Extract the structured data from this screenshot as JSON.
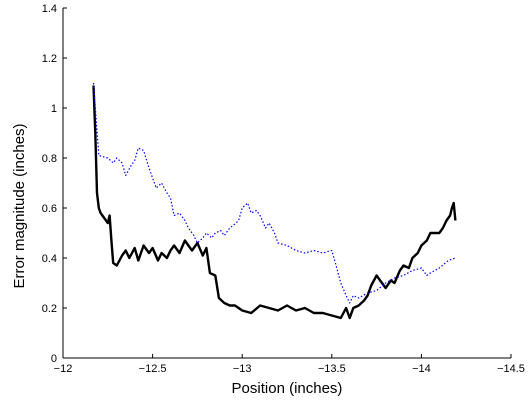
{
  "chart_data": {
    "type": "line",
    "title": "",
    "xlabel": "Position (inches)",
    "ylabel": "Error magnitude (inches)",
    "xlim": [
      -12,
      -14.5
    ],
    "ylim": [
      0,
      1.4
    ],
    "x_reversed": true,
    "grid": false,
    "legend": "none",
    "x_ticks": [
      -12,
      -12.5,
      -13,
      -13.5,
      -14,
      -14.5
    ],
    "x_tick_labels": [
      "−12",
      "−12.5",
      "−13",
      "−13.5",
      "−14",
      "−14.5"
    ],
    "y_ticks": [
      0,
      0.2,
      0.4,
      0.6,
      0.8,
      1,
      1.2,
      1.4
    ],
    "y_tick_labels": [
      "0",
      "0.2",
      "0.4",
      "0.6",
      "0.8",
      "1",
      "1.2",
      "1.4"
    ],
    "series": [
      {
        "style": "solid",
        "color": "#000000",
        "x": [
          -12.17,
          -12.18,
          -12.19,
          -12.2,
          -12.21,
          -12.23,
          -12.25,
          -12.26,
          -12.27,
          -12.28,
          -12.3,
          -12.33,
          -12.35,
          -12.37,
          -12.4,
          -12.42,
          -12.45,
          -12.48,
          -12.5,
          -12.53,
          -12.55,
          -12.58,
          -12.6,
          -12.62,
          -12.65,
          -12.68,
          -12.7,
          -12.72,
          -12.75,
          -12.78,
          -12.8,
          -12.82,
          -12.85,
          -12.87,
          -12.9,
          -12.93,
          -12.96,
          -13.0,
          -13.05,
          -13.1,
          -13.15,
          -13.2,
          -13.25,
          -13.3,
          -13.35,
          -13.4,
          -13.45,
          -13.5,
          -13.55,
          -13.58,
          -13.6,
          -13.62,
          -13.65,
          -13.68,
          -13.7,
          -13.72,
          -13.75,
          -13.78,
          -13.8,
          -13.83,
          -13.85,
          -13.88,
          -13.9,
          -13.93,
          -13.95,
          -13.98,
          -14.0,
          -14.03,
          -14.05,
          -14.08,
          -14.1,
          -14.12,
          -14.14,
          -14.16,
          -14.17,
          -14.18,
          -14.19
        ],
        "values": [
          1.09,
          0.9,
          0.66,
          0.6,
          0.58,
          0.56,
          0.54,
          0.57,
          0.47,
          0.38,
          0.37,
          0.41,
          0.43,
          0.4,
          0.44,
          0.39,
          0.45,
          0.42,
          0.44,
          0.39,
          0.42,
          0.4,
          0.43,
          0.45,
          0.42,
          0.47,
          0.45,
          0.43,
          0.46,
          0.41,
          0.44,
          0.34,
          0.33,
          0.24,
          0.22,
          0.21,
          0.21,
          0.19,
          0.18,
          0.21,
          0.2,
          0.19,
          0.21,
          0.19,
          0.2,
          0.18,
          0.18,
          0.17,
          0.16,
          0.2,
          0.16,
          0.2,
          0.21,
          0.23,
          0.25,
          0.29,
          0.33,
          0.3,
          0.28,
          0.31,
          0.3,
          0.35,
          0.37,
          0.36,
          0.4,
          0.42,
          0.45,
          0.47,
          0.5,
          0.5,
          0.5,
          0.52,
          0.55,
          0.57,
          0.6,
          0.62,
          0.55
        ]
      },
      {
        "style": "dotted",
        "color": "#0000ff",
        "x": [
          -12.17,
          -12.2,
          -12.25,
          -12.28,
          -12.3,
          -12.33,
          -12.35,
          -12.38,
          -12.4,
          -12.42,
          -12.45,
          -12.48,
          -12.5,
          -12.52,
          -12.55,
          -12.58,
          -12.6,
          -12.62,
          -12.65,
          -12.68,
          -12.7,
          -12.73,
          -12.75,
          -12.78,
          -12.8,
          -12.83,
          -12.85,
          -12.88,
          -12.9,
          -12.93,
          -12.95,
          -12.98,
          -13.0,
          -13.03,
          -13.05,
          -13.08,
          -13.1,
          -13.13,
          -13.15,
          -13.18,
          -13.2,
          -13.25,
          -13.3,
          -13.35,
          -13.4,
          -13.45,
          -13.5,
          -13.52,
          -13.55,
          -13.58,
          -13.6,
          -13.62,
          -13.65,
          -13.7,
          -13.75,
          -13.8,
          -13.85,
          -13.9,
          -13.95,
          -14.0,
          -14.03,
          -14.05,
          -14.1,
          -14.15,
          -14.19
        ],
        "values": [
          1.1,
          0.81,
          0.8,
          0.78,
          0.8,
          0.78,
          0.73,
          0.77,
          0.79,
          0.84,
          0.83,
          0.76,
          0.72,
          0.68,
          0.7,
          0.66,
          0.64,
          0.57,
          0.58,
          0.55,
          0.52,
          0.49,
          0.46,
          0.48,
          0.5,
          0.48,
          0.5,
          0.51,
          0.49,
          0.52,
          0.53,
          0.55,
          0.6,
          0.62,
          0.58,
          0.59,
          0.57,
          0.52,
          0.54,
          0.5,
          0.46,
          0.45,
          0.43,
          0.42,
          0.43,
          0.42,
          0.43,
          0.38,
          0.3,
          0.25,
          0.22,
          0.25,
          0.24,
          0.26,
          0.27,
          0.3,
          0.32,
          0.33,
          0.35,
          0.36,
          0.33,
          0.34,
          0.36,
          0.39,
          0.4
        ]
      }
    ]
  }
}
